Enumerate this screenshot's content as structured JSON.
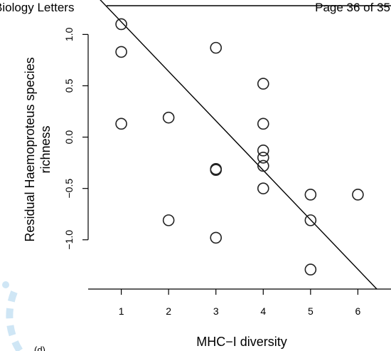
{
  "header": {
    "journal": "Biology Letters",
    "page": "Page 36 of 35"
  },
  "panel_label": "(d)",
  "colors": {
    "ink": "#000000",
    "watermark_blue": "#cfe6f5"
  },
  "chart_data": {
    "type": "scatter",
    "title": "",
    "xlabel": "MHC−I diversity",
    "ylabel_lines": [
      "Residual Haemoproteus species",
      "richness"
    ],
    "xlim": [
      0.3,
      6.7
    ],
    "ylim": [
      -1.48,
      1.28
    ],
    "xticks": [
      1,
      2,
      3,
      4,
      5,
      6
    ],
    "xtick_labels": [
      "1",
      "2",
      "3",
      "4",
      "5",
      "6"
    ],
    "yticks": [
      -1.0,
      -0.5,
      0.0,
      0.5,
      1.0
    ],
    "ytick_labels": [
      "−1.0",
      "−0.5",
      "0.0",
      "0.5",
      "1.0"
    ],
    "marker": "open-circle",
    "points": [
      {
        "x": 1,
        "y": 1.1
      },
      {
        "x": 1,
        "y": 0.83
      },
      {
        "x": 1,
        "y": 0.13
      },
      {
        "x": 2,
        "y": 0.19
      },
      {
        "x": 2,
        "y": -0.81
      },
      {
        "x": 3,
        "y": 0.87
      },
      {
        "x": 3,
        "y": -0.31
      },
      {
        "x": 3,
        "y": -0.32
      },
      {
        "x": 3,
        "y": -0.98
      },
      {
        "x": 4,
        "y": 0.52
      },
      {
        "x": 4,
        "y": 0.13
      },
      {
        "x": 4,
        "y": -0.13
      },
      {
        "x": 4,
        "y": -0.2
      },
      {
        "x": 4,
        "y": -0.28
      },
      {
        "x": 4,
        "y": -0.5
      },
      {
        "x": 5,
        "y": -0.56
      },
      {
        "x": 5,
        "y": -0.81
      },
      {
        "x": 5,
        "y": -1.29
      },
      {
        "x": 6,
        "y": -0.56
      }
    ],
    "fit_line": {
      "x": [
        0.3,
        6.4
      ],
      "y": [
        1.46,
        -1.48
      ]
    },
    "grid": false,
    "legend": "none"
  }
}
